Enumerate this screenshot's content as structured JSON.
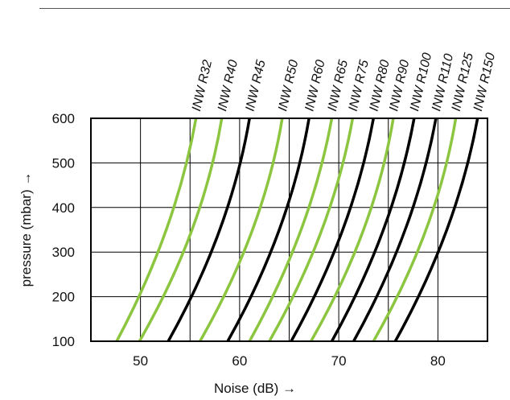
{
  "chart_data": {
    "type": "line",
    "xlabel": "Noise (dB) →",
    "ylabel": "pressure (mbar) →",
    "xlim": [
      45,
      85
    ],
    "ylim": [
      100,
      600
    ],
    "x_ticks": [
      50,
      60,
      70,
      80
    ],
    "x_grid": [
      50,
      55,
      60,
      65,
      70,
      75,
      80
    ],
    "y_ticks": [
      100,
      200,
      300,
      400,
      500,
      600
    ],
    "grid": true,
    "colors": {
      "green": "#8cc540",
      "black": "#000000"
    },
    "series": [
      {
        "name": "INW R32",
        "color": "green",
        "x": [
          47.6,
          52.6,
          55.6
        ],
        "y": [
          100,
          350,
          600
        ]
      },
      {
        "name": "INW R40",
        "color": "green",
        "x": [
          49.9,
          55.2,
          58.2
        ],
        "y": [
          100,
          350,
          600
        ]
      },
      {
        "name": "INW R45",
        "color": "black",
        "x": [
          52.8,
          58.0,
          61.0
        ],
        "y": [
          100,
          350,
          600
        ]
      },
      {
        "name": "INW R50",
        "color": "green",
        "x": [
          56.0,
          61.3,
          64.3
        ],
        "y": [
          100,
          350,
          600
        ]
      },
      {
        "name": "INW R60",
        "color": "black",
        "x": [
          58.8,
          64.0,
          67.0
        ],
        "y": [
          100,
          350,
          600
        ]
      },
      {
        "name": "INW R65",
        "color": "green",
        "x": [
          61.0,
          66.2,
          69.3
        ],
        "y": [
          100,
          350,
          600
        ]
      },
      {
        "name": "INW R75",
        "color": "green",
        "x": [
          63.0,
          68.3,
          71.4
        ],
        "y": [
          100,
          350,
          600
        ]
      },
      {
        "name": "INW R80",
        "color": "black",
        "x": [
          65.2,
          70.4,
          73.5
        ],
        "y": [
          100,
          350,
          600
        ]
      },
      {
        "name": "INW R90",
        "color": "green",
        "x": [
          67.2,
          72.5,
          75.5
        ],
        "y": [
          100,
          350,
          600
        ]
      },
      {
        "name": "INW R100",
        "color": "black",
        "x": [
          69.3,
          74.5,
          77.6
        ],
        "y": [
          100,
          350,
          600
        ]
      },
      {
        "name": "INW R110",
        "color": "black",
        "x": [
          71.5,
          76.7,
          79.8
        ],
        "y": [
          100,
          350,
          600
        ]
      },
      {
        "name": "INW R125",
        "color": "green",
        "x": [
          73.5,
          78.8,
          81.8
        ],
        "y": [
          100,
          350,
          600
        ]
      },
      {
        "name": "INW R150",
        "color": "black",
        "x": [
          75.7,
          80.9,
          84.0
        ],
        "y": [
          100,
          350,
          600
        ]
      }
    ]
  }
}
